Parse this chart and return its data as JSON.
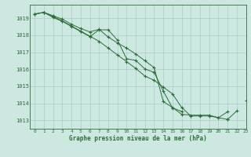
{
  "title": "Graphe pression niveau de la mer (hPa)",
  "background_color": "#cce8e0",
  "grid_color": "#aacccc",
  "line_color": "#2d6e3a",
  "xlim": [
    -0.5,
    23
  ],
  "ylim": [
    1012.5,
    1019.8
  ],
  "yticks": [
    1013,
    1014,
    1015,
    1016,
    1017,
    1018,
    1019
  ],
  "xticks": [
    0,
    1,
    2,
    3,
    4,
    5,
    6,
    7,
    8,
    9,
    10,
    11,
    12,
    13,
    14,
    15,
    16,
    17,
    18,
    19,
    20,
    21,
    22,
    23
  ],
  "line1": [
    1019.25,
    1019.35,
    1019.15,
    1018.95,
    1018.65,
    1018.4,
    1018.2,
    1018.35,
    1017.9,
    1017.55,
    1017.25,
    1016.9,
    1016.5,
    1016.1,
    1014.1,
    1013.75,
    1013.35,
    1013.3,
    1013.3,
    1013.3,
    1013.15,
    1013.5,
    null,
    null
  ],
  "line2": [
    1019.25,
    1019.35,
    1019.1,
    1018.85,
    1018.55,
    1018.25,
    1017.95,
    1017.65,
    1017.25,
    1016.85,
    1016.45,
    1016.05,
    1015.6,
    1015.35,
    1014.95,
    1014.55,
    1013.75,
    1013.25,
    1013.25,
    1013.25,
    1013.15,
    1013.05,
    1013.55,
    null
  ],
  "line3": [
    1019.25,
    1019.35,
    1019.05,
    1018.82,
    1018.52,
    1018.22,
    1017.92,
    1018.32,
    1018.32,
    1017.72,
    1016.62,
    1016.52,
    1016.02,
    1015.82,
    1014.72,
    1013.72,
    1013.52,
    null,
    null,
    null,
    null,
    null,
    null,
    null
  ],
  "line4": [
    null,
    null,
    null,
    null,
    null,
    null,
    null,
    null,
    null,
    null,
    null,
    null,
    null,
    null,
    null,
    null,
    null,
    null,
    null,
    null,
    null,
    1013.05,
    null,
    1014.15
  ]
}
